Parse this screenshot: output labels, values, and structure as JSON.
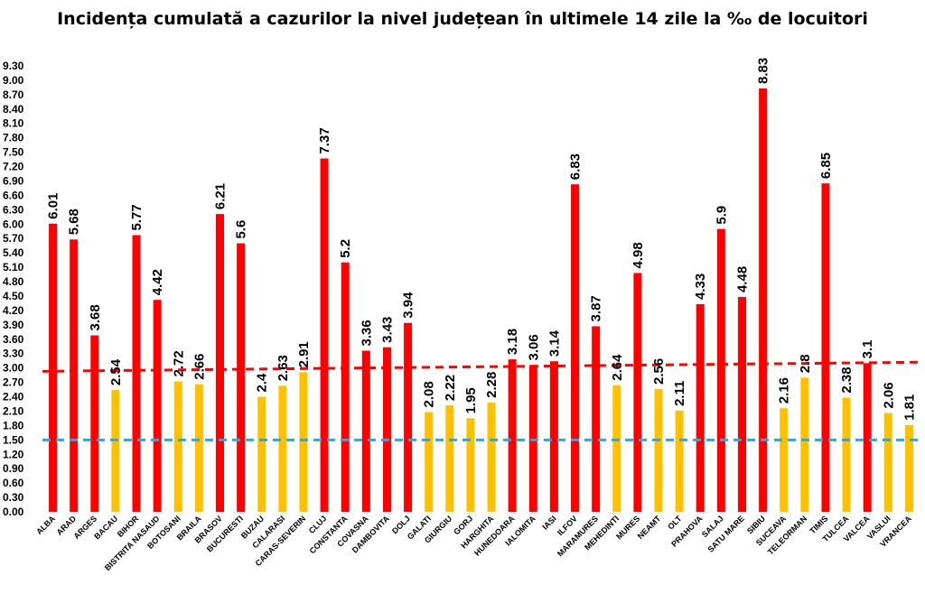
{
  "chart_data": {
    "type": "bar",
    "title": "Incidența cumulată a cazurilor la nivel județean în ultimele 14 zile la ‰ de locuitori",
    "xlabel": "",
    "ylabel": "",
    "ylim": [
      0,
      9.3
    ],
    "ytick_step": 0.3,
    "grid": false,
    "categories": [
      "ALBA",
      "ARAD",
      "ARGES",
      "BACAU",
      "BIHOR",
      "BISTRITA NASAUD",
      "BOTOSANI",
      "BRAILA",
      "BRASOV",
      "BUCURESTI",
      "BUZAU",
      "CALARASI",
      "CARAS-SEVERIN",
      "CLUJ",
      "CONSTANTA",
      "COVASNA",
      "DAMBOVITA",
      "DOLJ",
      "GALATI",
      "GIURGIU",
      "GORJ",
      "HARGHITA",
      "HUNEDOARA",
      "IALOMITA",
      "IASI",
      "ILFOV",
      "MARAMURES",
      "MEHEDINTI",
      "MURES",
      "NEAMT",
      "OLT",
      "PRAHOVA",
      "SALAJ",
      "SATU MARE",
      "SIBIU",
      "SUCEAVA",
      "TELEORMAN",
      "TIMIS",
      "TULCEA",
      "VALCEA",
      "VASLUI",
      "VRANCEA"
    ],
    "values": [
      6.01,
      5.68,
      3.68,
      2.54,
      5.77,
      4.42,
      2.72,
      2.66,
      6.21,
      5.6,
      2.4,
      2.63,
      2.91,
      7.37,
      5.2,
      3.36,
      3.43,
      3.94,
      2.08,
      2.22,
      1.95,
      2.28,
      3.18,
      3.06,
      3.14,
      6.83,
      3.87,
      2.64,
      4.98,
      2.56,
      2.11,
      4.33,
      5.9,
      4.48,
      8.83,
      2.16,
      2.8,
      6.85,
      2.38,
      3.1,
      2.06,
      1.81
    ],
    "value_labels": [
      "6.01",
      "5.68",
      "3.68",
      "2.54",
      "5.77",
      "4.42",
      "2.72",
      "2.66",
      "6.21",
      "5.6",
      "2.4",
      "2.63",
      "2.91",
      "7.37",
      "5.2",
      "3.36",
      "3.43",
      "3.94",
      "2.08",
      "2.22",
      "1.95",
      "2.28",
      "3.18",
      "3.06",
      "3.14",
      "6.83",
      "3.87",
      "2.64",
      "4.98",
      "2.56",
      "2.11",
      "4.33",
      "5.9",
      "4.48",
      "8.83",
      "2.16",
      "2.8",
      "6.85",
      "2.38",
      "3.1",
      "2.06",
      "1.81"
    ],
    "yticks": [
      "0.00",
      "0.30",
      "0.60",
      "0.90",
      "1.20",
      "1.50",
      "1.80",
      "2.10",
      "2.40",
      "2.70",
      "3.00",
      "3.30",
      "3.60",
      "3.90",
      "4.20",
      "4.50",
      "4.80",
      "5.10",
      "5.40",
      "5.70",
      "6.00",
      "6.30",
      "6.60",
      "6.90",
      "7.20",
      "7.50",
      "7.80",
      "8.10",
      "8.40",
      "8.70",
      "9.00",
      "9.30"
    ],
    "colors": {
      "high": "#ff0000",
      "low": "#ffc000",
      "threshold_line_high": "#ff0000",
      "threshold_line_low": "#29a9e0"
    },
    "thresholds": {
      "low_line": 1.5,
      "high_line_start": 2.93,
      "high_line_end": 3.12
    }
  }
}
